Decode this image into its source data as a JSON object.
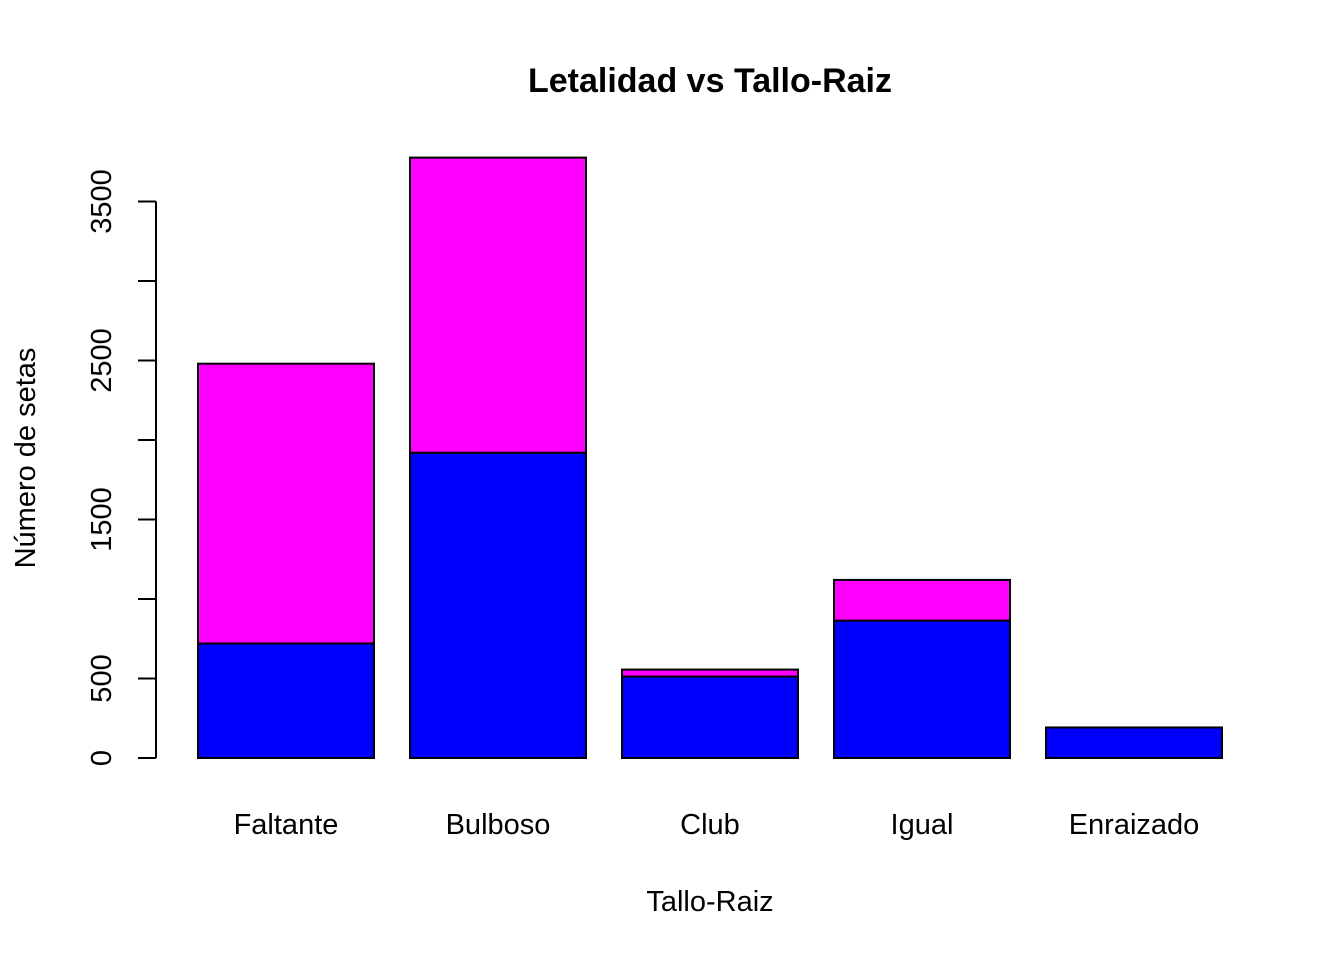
{
  "chart_data": {
    "type": "bar",
    "stacked": true,
    "title": "Letalidad vs Tallo-Raiz",
    "xlabel": "Tallo-Raiz",
    "ylabel": "Número de setas",
    "categories": [
      "Faltante",
      "Bulboso",
      "Club",
      "Igual",
      "Enraizado"
    ],
    "series": [
      {
        "color": "#0000FF",
        "values": [
          720,
          1920,
          512,
          864,
          192
        ]
      },
      {
        "color": "#FF00FF",
        "values": [
          1760,
          1856,
          44,
          256,
          0
        ]
      }
    ],
    "yticks": [
      0,
      500,
      1500,
      2500,
      3500
    ],
    "yminor_ticks": [
      1000,
      2000,
      3000
    ],
    "ylim": [
      0,
      3500
    ],
    "grid": false,
    "legend": "none"
  }
}
